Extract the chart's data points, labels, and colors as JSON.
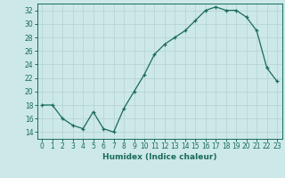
{
  "x": [
    0,
    1,
    2,
    3,
    4,
    5,
    6,
    7,
    8,
    9,
    10,
    11,
    12,
    13,
    14,
    15,
    16,
    17,
    18,
    19,
    20,
    21,
    22,
    23
  ],
  "y": [
    18,
    18,
    16,
    15,
    14.5,
    17,
    14.5,
    14,
    17.5,
    20,
    22.5,
    25.5,
    27,
    28,
    29,
    30.5,
    32,
    32.5,
    32,
    32,
    31,
    29,
    23.5,
    21.5
  ],
  "line_color": "#1a6b5a",
  "marker": "+",
  "bg_color": "#cce8e8",
  "grid_color": "#b8d4d4",
  "xlabel": "Humidex (Indice chaleur)",
  "ylim": [
    13,
    33
  ],
  "yticks": [
    14,
    16,
    18,
    20,
    22,
    24,
    26,
    28,
    30,
    32
  ],
  "xlim": [
    -0.5,
    23.5
  ],
  "xticks": [
    0,
    1,
    2,
    3,
    4,
    5,
    6,
    7,
    8,
    9,
    10,
    11,
    12,
    13,
    14,
    15,
    16,
    17,
    18,
    19,
    20,
    21,
    22,
    23
  ]
}
